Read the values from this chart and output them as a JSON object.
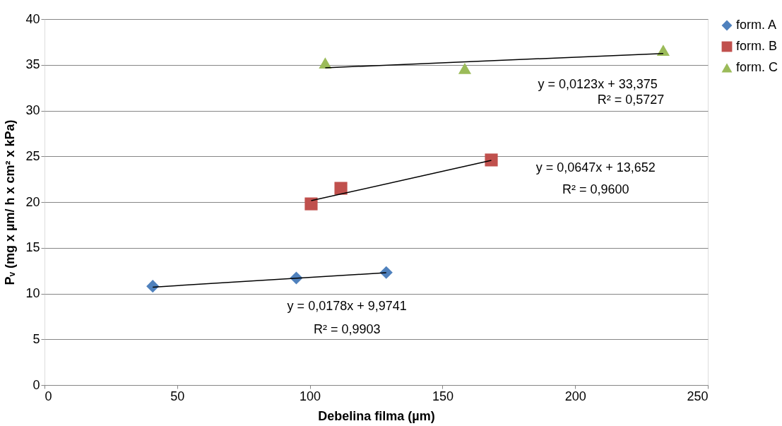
{
  "chart_data": {
    "type": "scatter",
    "xlabel": "Debelina filma (µm)",
    "ylabel": "Pᵥ (mg  x µm/ h x cm² x kPa)",
    "xlim": [
      0,
      250
    ],
    "xticks": [
      0,
      50,
      100,
      150,
      200,
      250
    ],
    "ylim": [
      0,
      40
    ],
    "yticks": [
      0,
      5,
      10,
      15,
      20,
      25,
      30,
      35,
      40
    ],
    "grid": "y",
    "legend": "right",
    "series": [
      {
        "name": "form. A",
        "color": "#4f81bd",
        "marker": "diamond",
        "x": [
          40.8,
          94.9,
          128.8
        ],
        "values": [
          10.8,
          11.7,
          12.3
        ]
      },
      {
        "name": "form. B",
        "color": "#c0504d",
        "marker": "square",
        "x": [
          100.5,
          111.7,
          168.4
        ],
        "values": [
          19.8,
          21.5,
          24.6
        ]
      },
      {
        "name": "form. C",
        "color": "#9bbb59",
        "marker": "triangle",
        "x": [
          105.8,
          158.4,
          233.2
        ],
        "values": [
          35.2,
          34.6,
          36.6
        ]
      },
      {
        "type": "line",
        "color": "#000000",
        "marker": "none",
        "x": [
          40.8,
          128.8
        ],
        "values": [
          10.7,
          12.27
        ]
      },
      {
        "type": "line",
        "color": "#000000",
        "marker": "none",
        "x": [
          100.5,
          168.4
        ],
        "values": [
          20.15,
          24.55
        ]
      },
      {
        "type": "line",
        "color": "#000000",
        "marker": "none",
        "x": [
          105.8,
          233.2
        ],
        "values": [
          34.68,
          36.24
        ]
      }
    ],
    "annotations": [
      "y = 0,0123x + 33,375",
      "R² = 0,5727",
      "y = 0,0647x + 13,652",
      "R² = 0,9600",
      "y = 0,0178x + 9,9741",
      "R² = 0,9903"
    ]
  }
}
